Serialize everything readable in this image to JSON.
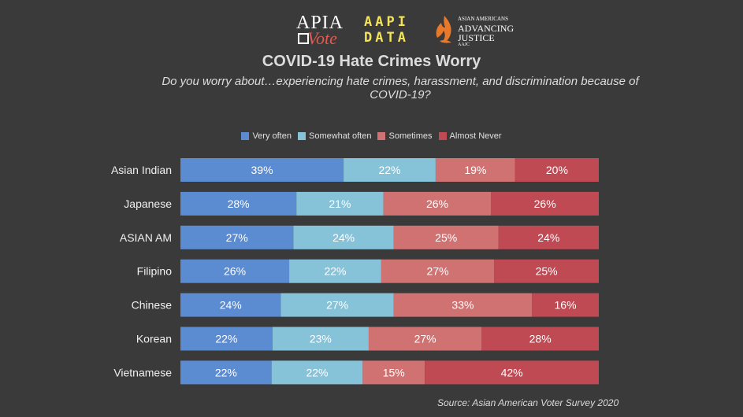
{
  "logos": {
    "apia": {
      "top": "APIA",
      "bottom": "Vote"
    },
    "aapi": {
      "line1": "AAPI",
      "line2": "DATA"
    },
    "aajc": {
      "line1": "ASIAN AMERICANS",
      "line2": "ADVANCING",
      "line3": "JUSTICE",
      "line4": "AAJC"
    }
  },
  "colors": {
    "background": "#3a3a3a",
    "very_often": "#5b8bd0",
    "somewhat_often": "#86c3d9",
    "sometimes": "#d07272",
    "almost_never": "#bf4a54"
  },
  "source": "Source: Asian American Voter Survey 2020",
  "chart_data": {
    "type": "bar",
    "orientation": "horizontal",
    "stacked": true,
    "title": "COVID-19 Hate Crimes Worry",
    "subtitle": "Do you worry about…experiencing hate crimes, harassment, and discrimination because of COVID-19?",
    "categories": [
      "Asian Indian",
      "Japanese",
      "ASIAN AM",
      "Filipino",
      "Chinese",
      "Korean",
      "Vietnamese"
    ],
    "series": [
      {
        "name": "Very often",
        "color": "#5b8bd0",
        "values": [
          39,
          28,
          27,
          26,
          24,
          22,
          22
        ]
      },
      {
        "name": "Somewhat often",
        "color": "#86c3d9",
        "values": [
          22,
          21,
          24,
          22,
          27,
          23,
          22
        ]
      },
      {
        "name": "Sometimes",
        "color": "#d07272",
        "values": [
          19,
          26,
          25,
          27,
          33,
          27,
          15
        ]
      },
      {
        "name": "Almost Never",
        "color": "#bf4a54",
        "values": [
          20,
          26,
          24,
          25,
          16,
          28,
          42
        ]
      }
    ],
    "value_suffix": "%",
    "legend_position": "top",
    "grid": false
  }
}
